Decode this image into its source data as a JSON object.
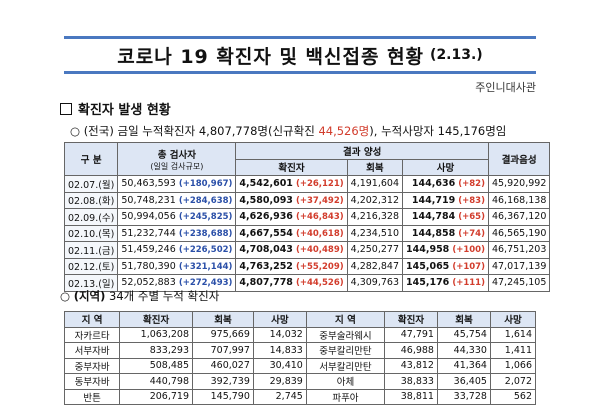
{
  "title": {
    "main": "코로나 19  확진자 및 백신접종 현황",
    "date": "(2.13.)"
  },
  "source": "주인니대사관",
  "section1": {
    "label": "확진자 발생 현황"
  },
  "summary": {
    "prefix": "○ (전국) ",
    "today_label": "금일 누적확진자 ",
    "total": "4,807,778명",
    "new_open": "(신규확진 ",
    "new_value": "44,526명",
    "new_close": "), ",
    "death_label": "누적사망자 ",
    "deaths": "145,176명",
    "suffix": "임"
  },
  "table1": {
    "headers": {
      "date": "구 분",
      "tests": "총 검사자",
      "tests_sub": "(일일 검사규모)",
      "result": "결과 양성",
      "confirmed": "확진자",
      "recovered": "회복",
      "deaths": "사망",
      "negative": "결과음성"
    },
    "rows": [
      {
        "date": "02.07.(월)",
        "tests": "50,463,593",
        "tests_daily": "(+180,967)",
        "confirmed": "4,542,601",
        "confirmed_new": "(+26,121)",
        "recovered": "4,191,604",
        "deaths": "144,636",
        "deaths_new": "(+82)",
        "negative": "45,920,992"
      },
      {
        "date": "02.08.(화)",
        "tests": "50,748,231",
        "tests_daily": "(+284,638)",
        "confirmed": "4,580,093",
        "confirmed_new": "(+37,492)",
        "recovered": "4,202,312",
        "deaths": "144,719",
        "deaths_new": "(+83)",
        "negative": "46,168,138"
      },
      {
        "date": "02.09.(수)",
        "tests": "50,994,056",
        "tests_daily": "(+245,825)",
        "confirmed": "4,626,936",
        "confirmed_new": "(+46,843)",
        "recovered": "4,216,328",
        "deaths": "144,784",
        "deaths_new": "(+65)",
        "negative": "46,367,120"
      },
      {
        "date": "02.10.(목)",
        "tests": "51,232,744",
        "tests_daily": "(+238,688)",
        "confirmed": "4,667,554",
        "confirmed_new": "(+40,618)",
        "recovered": "4,234,510",
        "deaths": "144,858",
        "deaths_new": "(+74)",
        "negative": "46,565,190"
      },
      {
        "date": "02.11.(금)",
        "tests": "51,459,246",
        "tests_daily": "(+226,502)",
        "confirmed": "4,708,043",
        "confirmed_new": "(+40,489)",
        "recovered": "4,250,277",
        "deaths": "144,958",
        "deaths_new": "(+100)",
        "negative": "46,751,203"
      },
      {
        "date": "02.12.(토)",
        "tests": "51,780,390",
        "tests_daily": "(+321,144)",
        "confirmed": "4,763,252",
        "confirmed_new": "(+55,209)",
        "recovered": "4,282,847",
        "deaths": "145,065",
        "deaths_new": "(+107)",
        "negative": "47,017,139"
      },
      {
        "date": "02.13.(일)",
        "tests": "52,052,883",
        "tests_daily": "(+272,493)",
        "confirmed": "4,807,778",
        "confirmed_new": "(+44,526)",
        "recovered": "4,309,763",
        "deaths": "145,176",
        "deaths_new": "(+111)",
        "negative": "47,245,105"
      }
    ]
  },
  "section2": {
    "label": "(지역)",
    "text": " 34개 주별 누적 확진자"
  },
  "table2": {
    "headers": {
      "region": "지 역",
      "confirmed": "확진자",
      "recovered": "회복",
      "deaths": "사망"
    },
    "rows": [
      {
        "l_region": "자카르타",
        "l_conf": "1,063,208",
        "l_rec": "975,669",
        "l_death": "14,032",
        "r_region": "중부술라웨시",
        "r_conf": "47,791",
        "r_rec": "45,754",
        "r_death": "1,614"
      },
      {
        "l_region": "서부자바",
        "l_conf": "833,293",
        "l_rec": "707,997",
        "l_death": "14,833",
        "r_region": "중부칼리만탄",
        "r_conf": "46,988",
        "r_rec": "44,330",
        "r_death": "1,411"
      },
      {
        "l_region": "중부자바",
        "l_conf": "508,485",
        "l_rec": "460,027",
        "l_death": "30,410",
        "r_region": "서부칼리만탄",
        "r_conf": "43,812",
        "r_rec": "41,364",
        "r_death": "1,066"
      },
      {
        "l_region": "동부자바",
        "l_conf": "440,798",
        "l_rec": "392,739",
        "l_death": "29,839",
        "r_region": "아체",
        "r_conf": "38,833",
        "r_rec": "36,405",
        "r_death": "2,072"
      },
      {
        "l_region": "반튼",
        "l_conf": "206,719",
        "l_rec": "145,790",
        "l_death": "2,745",
        "r_region": "파푸아",
        "r_conf": "38,811",
        "r_rec": "33,728",
        "r_death": "562"
      }
    ]
  }
}
